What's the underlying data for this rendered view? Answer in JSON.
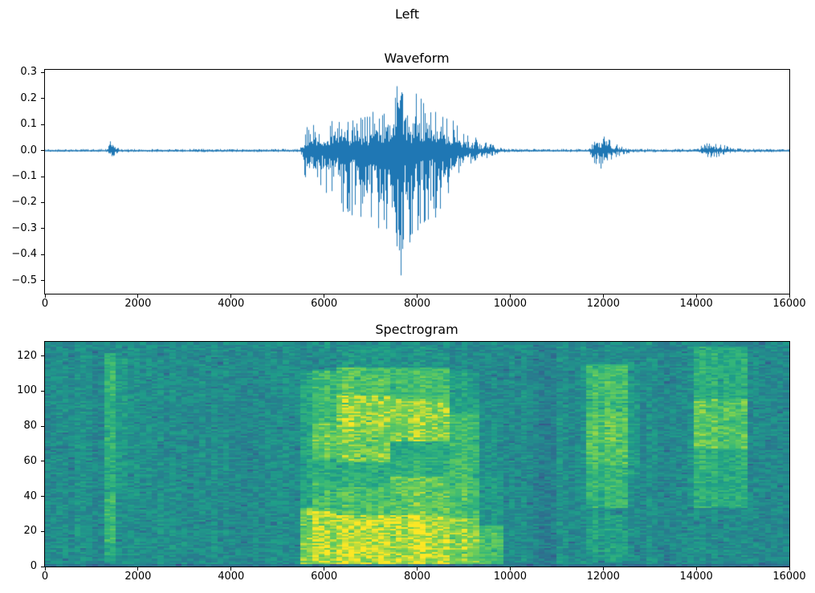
{
  "figure": {
    "suptitle": "Left",
    "background": "#ffffff"
  },
  "chart_data": [
    {
      "type": "line",
      "title": "Waveform",
      "line_color": "#1f77b4",
      "xlim": [
        0,
        16000
      ],
      "ylim": [
        -0.55,
        0.31
      ],
      "xtick_values": [
        0,
        2000,
        4000,
        6000,
        8000,
        10000,
        12000,
        14000,
        16000
      ],
      "xtick_labels": [
        "0",
        "2000",
        "4000",
        "6000",
        "8000",
        "10000",
        "12000",
        "14000",
        "16000"
      ],
      "ytick_values": [
        0.3,
        0.2,
        0.1,
        0.0,
        -0.1,
        -0.2,
        -0.3,
        -0.4,
        -0.5
      ],
      "ytick_labels": [
        "0.3",
        "0.2",
        "0.1",
        "0.0",
        "−0.1",
        "−0.2",
        "−0.3",
        "−0.4",
        "−0.5"
      ],
      "envelope": [
        [
          0,
          0.005,
          0.005
        ],
        [
          1330,
          0.006,
          0.006
        ],
        [
          1390,
          0.035,
          0.03
        ],
        [
          1450,
          0.045,
          0.04
        ],
        [
          1520,
          0.015,
          0.015
        ],
        [
          1600,
          0.006,
          0.006
        ],
        [
          5480,
          0.006,
          0.006
        ],
        [
          5560,
          0.07,
          0.09
        ],
        [
          5650,
          0.1,
          0.13
        ],
        [
          5900,
          0.11,
          0.15
        ],
        [
          6200,
          0.12,
          0.2
        ],
        [
          6500,
          0.13,
          0.26
        ],
        [
          6800,
          0.14,
          0.3
        ],
        [
          7050,
          0.15,
          0.34
        ],
        [
          7250,
          0.19,
          0.42
        ],
        [
          7450,
          0.27,
          0.52
        ],
        [
          7650,
          0.26,
          0.48
        ],
        [
          7850,
          0.23,
          0.38
        ],
        [
          8050,
          0.22,
          0.33
        ],
        [
          8250,
          0.2,
          0.3
        ],
        [
          8450,
          0.17,
          0.24
        ],
        [
          8650,
          0.14,
          0.17
        ],
        [
          8850,
          0.11,
          0.11
        ],
        [
          9050,
          0.07,
          0.07
        ],
        [
          9250,
          0.05,
          0.05
        ],
        [
          9450,
          0.035,
          0.035
        ],
        [
          9650,
          0.02,
          0.02
        ],
        [
          9800,
          0.01,
          0.01
        ],
        [
          10000,
          0.006,
          0.006
        ],
        [
          11680,
          0.006,
          0.006
        ],
        [
          11780,
          0.04,
          0.04
        ],
        [
          11900,
          0.07,
          0.08
        ],
        [
          12050,
          0.055,
          0.055
        ],
        [
          12250,
          0.03,
          0.03
        ],
        [
          12450,
          0.015,
          0.015
        ],
        [
          12650,
          0.007,
          0.007
        ],
        [
          14020,
          0.006,
          0.006
        ],
        [
          14150,
          0.025,
          0.025
        ],
        [
          14350,
          0.032,
          0.03
        ],
        [
          14600,
          0.022,
          0.02
        ],
        [
          14780,
          0.008,
          0.008
        ],
        [
          16000,
          0.005,
          0.005
        ]
      ]
    },
    {
      "type": "heatmap",
      "title": "Spectrogram",
      "colormap": "viridis",
      "xlim": [
        0,
        16000
      ],
      "ylim": [
        0,
        128
      ],
      "xtick_values": [
        0,
        2000,
        4000,
        6000,
        8000,
        10000,
        12000,
        14000,
        16000
      ],
      "xtick_labels": [
        "0",
        "2000",
        "4000",
        "6000",
        "8000",
        "10000",
        "12000",
        "14000",
        "16000"
      ],
      "ytick_values": [
        0,
        20,
        40,
        60,
        80,
        100,
        120
      ],
      "ytick_labels": [
        "0",
        "20",
        "40",
        "60",
        "80",
        "100",
        "120"
      ],
      "time_bins": 125,
      "freq_bins": 128,
      "base_intensity": 0.55,
      "noise": 0.09,
      "regions": [
        {
          "x0": 1310,
          "x1": 1555,
          "bands": [
            [
              3,
              122,
              0.7
            ],
            [
              14,
              42,
              0.78
            ],
            [
              60,
              85,
              0.74
            ],
            [
              96,
              120,
              0.76
            ]
          ]
        },
        {
          "x0": 1555,
          "x1": 1760,
          "bands": [
            [
              45,
              120,
              0.6
            ]
          ]
        },
        {
          "x0": 5480,
          "x1": 5760,
          "bands": [
            [
              2,
              34,
              0.88
            ],
            [
              34,
              112,
              0.66
            ]
          ]
        },
        {
          "x0": 5760,
          "x1": 6250,
          "bands": [
            [
              2,
              32,
              0.93
            ],
            [
              32,
              48,
              0.78
            ],
            [
              48,
              62,
              0.7
            ],
            [
              62,
              82,
              0.84
            ],
            [
              82,
              112,
              0.76
            ]
          ]
        },
        {
          "x0": 6250,
          "x1": 7450,
          "bands": [
            [
              2,
              30,
              0.95
            ],
            [
              30,
              46,
              0.8
            ],
            [
              46,
              60,
              0.7
            ],
            [
              60,
              78,
              0.86
            ],
            [
              78,
              98,
              0.9
            ],
            [
              98,
              114,
              0.8
            ],
            [
              114,
              126,
              0.6
            ]
          ]
        },
        {
          "x0": 7450,
          "x1": 8650,
          "bands": [
            [
              2,
              30,
              0.95
            ],
            [
              30,
              52,
              0.84
            ],
            [
              52,
              64,
              0.72
            ],
            [
              64,
              72,
              0.68
            ],
            [
              72,
              96,
              0.9
            ],
            [
              96,
              114,
              0.78
            ],
            [
              114,
              126,
              0.58
            ]
          ]
        },
        {
          "x0": 8650,
          "x1": 9350,
          "bands": [
            [
              2,
              28,
              0.9
            ],
            [
              28,
              56,
              0.8
            ],
            [
              56,
              88,
              0.78
            ],
            [
              88,
              112,
              0.66
            ]
          ]
        },
        {
          "x0": 9350,
          "x1": 9850,
          "bands": [
            [
              2,
              24,
              0.8
            ],
            [
              24,
              56,
              0.62
            ],
            [
              56,
              96,
              0.58
            ]
          ]
        },
        {
          "x0": 10450,
          "x1": 11050,
          "base": 0.5
        },
        {
          "x0": 11680,
          "x1": 12520,
          "bands": [
            [
              4,
              30,
              0.64
            ],
            [
              34,
              58,
              0.74
            ],
            [
              58,
              88,
              0.82
            ],
            [
              88,
              116,
              0.78
            ]
          ]
        },
        {
          "x0": 12520,
          "x1": 12780,
          "bands": [
            [
              50,
              105,
              0.6
            ]
          ]
        },
        {
          "x0": 13980,
          "x1": 15060,
          "bands": [
            [
              34,
              68,
              0.7
            ],
            [
              68,
              96,
              0.82
            ],
            [
              96,
              126,
              0.7
            ]
          ]
        },
        {
          "x0": 0,
          "x1": 16000,
          "caps": [
            [
              0,
              1.6,
              0.42
            ]
          ]
        }
      ]
    }
  ]
}
